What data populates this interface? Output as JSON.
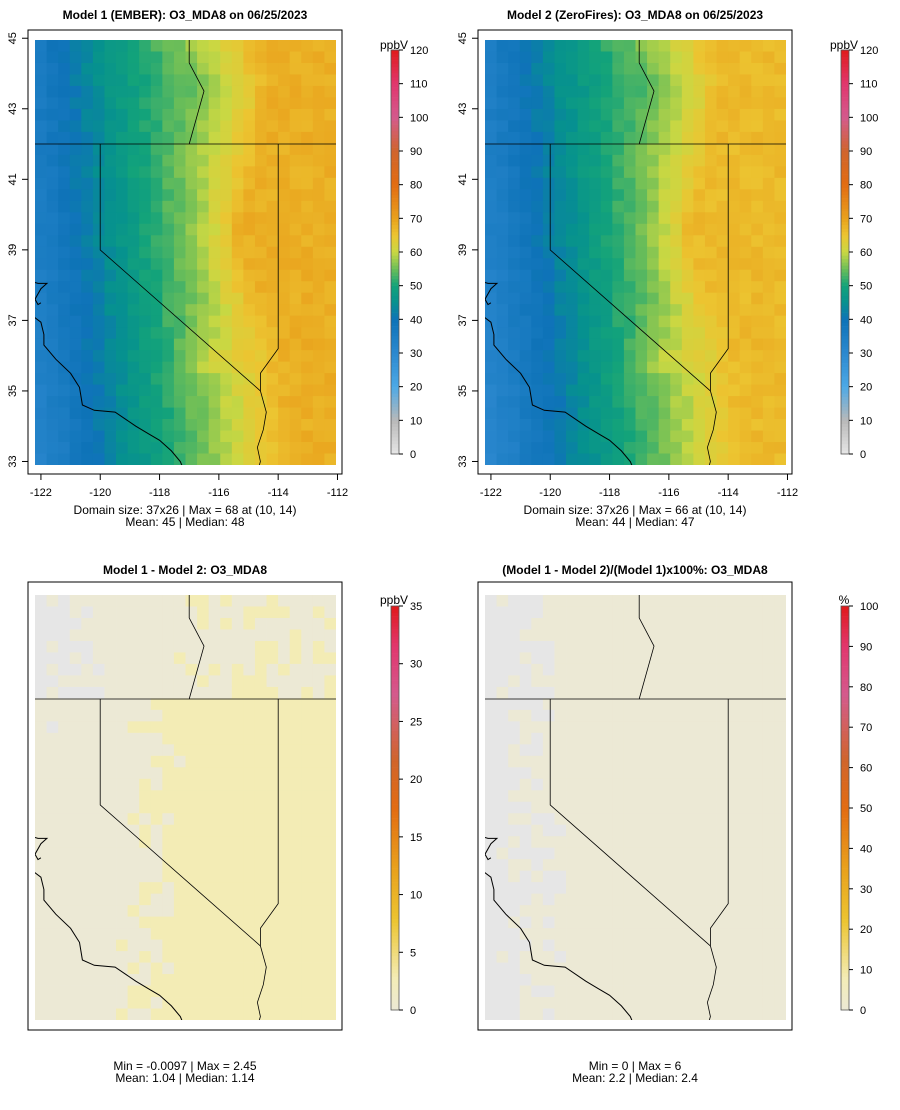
{
  "colors": {
    "low": "#e6e6e6",
    "c10": "#b9b9b9",
    "c20": "#4da9e6",
    "c30": "#2b88cf",
    "c40": "#0e73b8",
    "c45": "#06918f",
    "c50": "#13a37a",
    "c55": "#6cbe58",
    "c60": "#c9d843",
    "c65": "#ecc531",
    "c70": "#e9a11c",
    "c80": "#e26c12",
    "c90": "#d0652c",
    "c100": "#d35a8d",
    "c110": "#e1366d",
    "c120": "#e01b1b",
    "diffLow": "#e6e6e6",
    "diffMid": "#ece9d5",
    "diffWarm": "#f3ecb5"
  },
  "chart_data": [
    {
      "type": "heatmap",
      "title": "Model 1 (EMBER): O3_MDA8 on 06/25/2023",
      "grid_size": "37x26",
      "x_ticks": [
        "-122",
        "-120",
        "-118",
        "-116",
        "-114",
        "-112"
      ],
      "y_ticks": [
        "33",
        "35",
        "37",
        "39",
        "41",
        "43",
        "45"
      ],
      "xlim": [
        -122,
        -112
      ],
      "ylim": [
        33,
        45
      ],
      "colorbar": {
        "unit": "ppbV",
        "ticks": [
          "0",
          "10",
          "20",
          "30",
          "40",
          "50",
          "60",
          "70",
          "80",
          "90",
          "100",
          "110",
          "120"
        ],
        "range": [
          0,
          120
        ]
      },
      "stats_line1": "Domain size: 37x26 | Max = 68 at (10, 14)",
      "stats_line2": "Mean: 45 |  Median: 48",
      "max": 68,
      "mean": 45,
      "median": 48
    },
    {
      "type": "heatmap",
      "title": "Model 2 (ZeroFires): O3_MDA8 on 06/25/2023",
      "grid_size": "37x26",
      "x_ticks": [
        "-122",
        "-120",
        "-118",
        "-116",
        "-114",
        "-112"
      ],
      "y_ticks": [
        "33",
        "35",
        "37",
        "39",
        "41",
        "43",
        "45"
      ],
      "xlim": [
        -122,
        -112
      ],
      "ylim": [
        33,
        45
      ],
      "colorbar": {
        "unit": "ppbV",
        "ticks": [
          "0",
          "10",
          "20",
          "30",
          "40",
          "50",
          "60",
          "70",
          "80",
          "90",
          "100",
          "110",
          "120"
        ],
        "range": [
          0,
          120
        ]
      },
      "stats_line1": "Domain size: 37x26 | Max = 66 at (10, 14)",
      "stats_line2": "Mean: 44 |  Median: 47",
      "max": 66,
      "mean": 44,
      "median": 47
    },
    {
      "type": "heatmap",
      "title": "Model 1 - Model 2: O3_MDA8",
      "colorbar": {
        "unit": "ppbV",
        "ticks": [
          "0",
          "5",
          "10",
          "15",
          "20",
          "25",
          "30",
          "35"
        ],
        "range": [
          0,
          35
        ]
      },
      "stats_line1": "Min = -0.0097 | Max = 2.45",
      "stats_line2": "Mean: 1.04 |  Median: 1.14",
      "min": -0.0097,
      "max": 2.45,
      "mean": 1.04,
      "median": 1.14
    },
    {
      "type": "heatmap",
      "title": "(Model 1 - Model 2)/(Model 1)x100%: O3_MDA8",
      "colorbar": {
        "unit": "%",
        "ticks": [
          "0",
          "10",
          "20",
          "30",
          "40",
          "50",
          "60",
          "70",
          "80",
          "90",
          "100"
        ],
        "range": [
          0,
          100
        ]
      },
      "stats_line1": "Min = 0 | Max = 6",
      "stats_line2": "Mean: 2.2 |  Median: 2.4",
      "min": 0,
      "max": 6,
      "mean": 2.2,
      "median": 2.4
    }
  ]
}
